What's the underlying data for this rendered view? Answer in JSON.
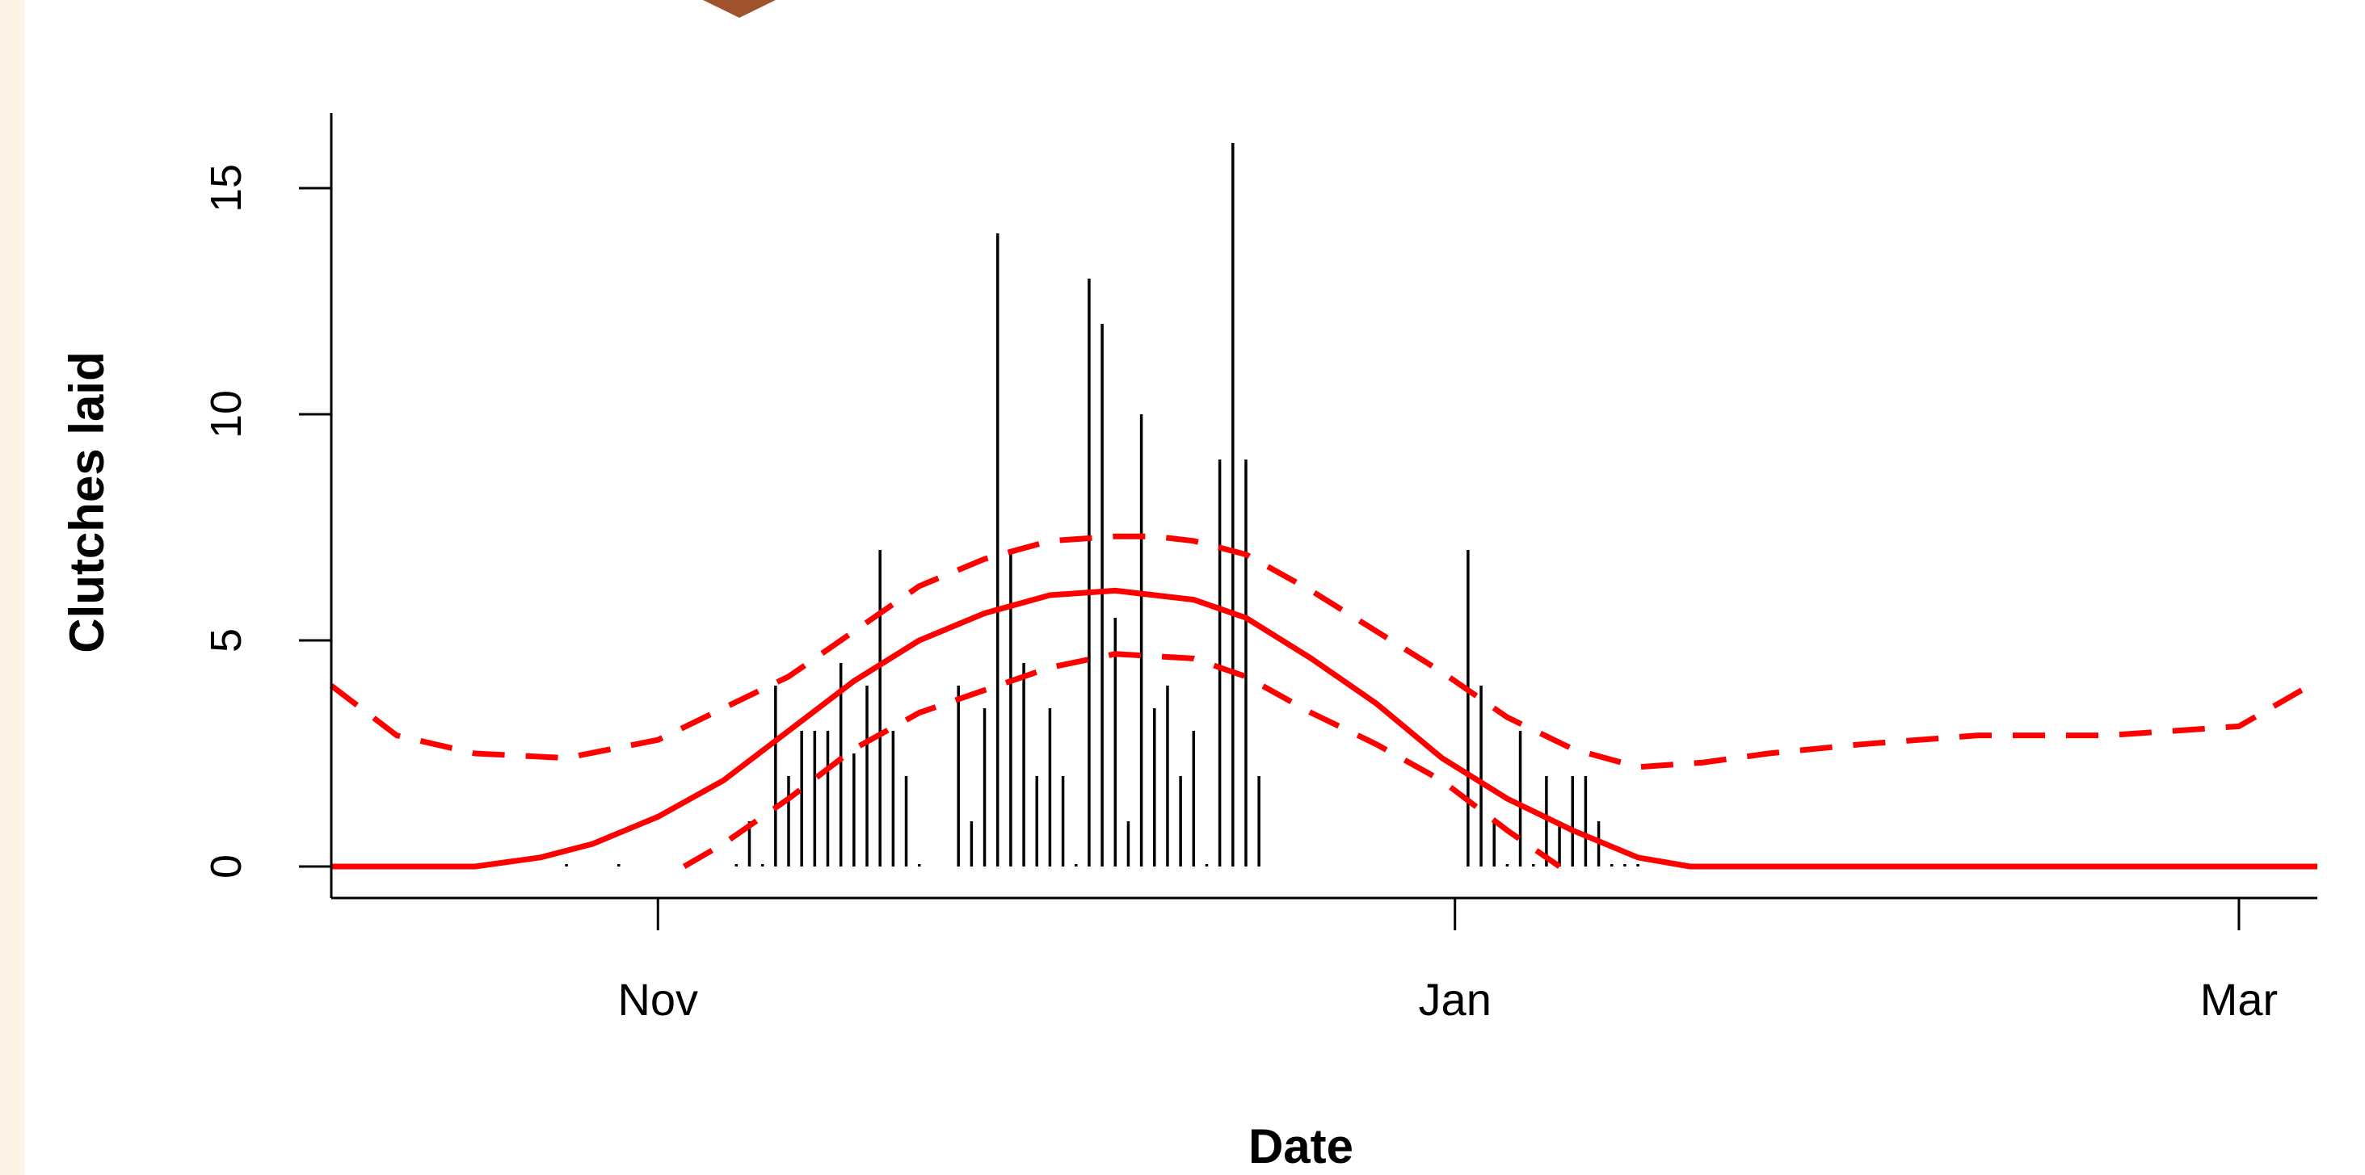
{
  "colors": {
    "background": "#fdf3e7",
    "panel": "#ffffff",
    "bars": "#000000",
    "fit": "#ff0000",
    "ornament": "#a0522d"
  },
  "chart_data": {
    "type": "bar",
    "xlabel": "Date",
    "ylabel": "Clutches laid",
    "title": "",
    "x_unit": "date",
    "xlim": [
      "2023-10-07",
      "2024-03-07"
    ],
    "ylim": [
      0,
      16
    ],
    "grid": false,
    "x_ticks": [
      {
        "date": "2023-11-01",
        "label": "Nov"
      },
      {
        "date": "2024-01-01",
        "label": "Jan"
      },
      {
        "date": "2024-03-01",
        "label": "Mar"
      }
    ],
    "y_ticks": [
      0,
      5,
      10,
      15
    ],
    "bars": {
      "name": "Clutches laid",
      "dates": [
        "2023-10-25",
        "2023-10-29",
        "2023-11-07",
        "2023-11-08",
        "2023-11-09",
        "2023-11-10",
        "2023-11-11",
        "2023-11-12",
        "2023-11-13",
        "2023-11-14",
        "2023-11-15",
        "2023-11-16",
        "2023-11-17",
        "2023-11-18",
        "2023-11-19",
        "2023-11-20",
        "2023-11-21",
        "2023-11-24",
        "2023-11-25",
        "2023-11-26",
        "2023-11-27",
        "2023-11-28",
        "2023-11-29",
        "2023-11-30",
        "2023-12-01",
        "2023-12-02",
        "2023-12-03",
        "2023-12-04",
        "2023-12-05",
        "2023-12-06",
        "2023-12-07",
        "2023-12-08",
        "2023-12-09",
        "2023-12-10",
        "2023-12-11",
        "2023-12-12",
        "2023-12-13",
        "2023-12-14",
        "2023-12-15",
        "2023-12-16",
        "2023-12-17",
        "2024-01-02",
        "2024-01-03",
        "2024-01-04",
        "2024-01-05",
        "2024-01-06",
        "2024-01-07",
        "2024-01-08",
        "2024-01-09",
        "2024-01-10",
        "2024-01-11",
        "2024-01-12",
        "2024-01-13",
        "2024-01-14",
        "2024-01-15"
      ],
      "values": [
        0,
        0,
        0,
        1,
        0,
        4,
        2,
        3,
        3,
        3,
        4.5,
        2.5,
        4,
        7,
        3,
        2,
        0,
        4,
        1,
        3.5,
        14,
        7,
        4.5,
        2,
        3.5,
        2,
        0,
        13,
        12,
        5.5,
        1,
        10,
        3.5,
        4,
        2,
        3,
        0,
        9,
        16,
        9,
        2,
        7,
        4,
        1,
        0,
        3,
        0,
        2,
        1,
        2,
        2,
        1,
        0,
        0,
        0
      ]
    },
    "series": [
      {
        "style": "solid",
        "x": [
          "2023-10-07",
          "2023-10-18",
          "2023-10-23",
          "2023-10-27",
          "2023-11-01",
          "2023-11-06",
          "2023-11-11",
          "2023-11-16",
          "2023-11-21",
          "2023-11-26",
          "2023-12-01",
          "2023-12-06",
          "2023-12-09",
          "2023-12-12",
          "2023-12-16",
          "2023-12-21",
          "2023-12-26",
          "2023-12-31",
          "2024-01-05",
          "2024-01-10",
          "2024-01-15",
          "2024-01-19",
          "2024-02-01",
          "2024-02-15",
          "2024-03-01",
          "2024-03-07"
        ],
        "y": [
          0,
          0,
          0.2,
          0.5,
          1.1,
          1.9,
          3.0,
          4.1,
          5.0,
          5.6,
          6.0,
          6.1,
          6.0,
          5.9,
          5.5,
          4.6,
          3.6,
          2.4,
          1.5,
          0.8,
          0.2,
          0,
          0,
          0,
          0,
          0
        ]
      },
      {
        "style": "dashed",
        "x": [
          "2023-10-07",
          "2023-10-12",
          "2023-10-18",
          "2023-10-25",
          "2023-11-01",
          "2023-11-06",
          "2023-11-11",
          "2023-11-16",
          "2023-11-21",
          "2023-11-26",
          "2023-12-01",
          "2023-12-06",
          "2023-12-09",
          "2023-12-12",
          "2023-12-16",
          "2023-12-21",
          "2023-12-26",
          "2023-12-31",
          "2024-01-05",
          "2024-01-10",
          "2024-01-15",
          "2024-01-20",
          "2024-01-25",
          "2024-02-01",
          "2024-02-10",
          "2024-02-20",
          "2024-03-01",
          "2024-03-07"
        ],
        "y": [
          4.0,
          2.9,
          2.5,
          2.4,
          2.8,
          3.5,
          4.2,
          5.2,
          6.2,
          6.8,
          7.2,
          7.3,
          7.3,
          7.2,
          6.9,
          6.1,
          5.2,
          4.3,
          3.3,
          2.6,
          2.2,
          2.3,
          2.5,
          2.7,
          2.9,
          2.9,
          3.1,
          4.1
        ]
      },
      {
        "style": "dashed",
        "x": [
          "2023-11-03",
          "2023-11-06",
          "2023-11-11",
          "2023-11-16",
          "2023-11-21",
          "2023-11-26",
          "2023-12-01",
          "2023-12-06",
          "2023-12-12",
          "2023-12-16",
          "2023-12-21",
          "2023-12-26",
          "2023-12-31",
          "2024-01-05",
          "2024-01-09"
        ],
        "y": [
          0,
          0.5,
          1.5,
          2.6,
          3.4,
          3.9,
          4.4,
          4.7,
          4.6,
          4.2,
          3.4,
          2.7,
          1.9,
          0.8,
          0
        ]
      }
    ]
  }
}
